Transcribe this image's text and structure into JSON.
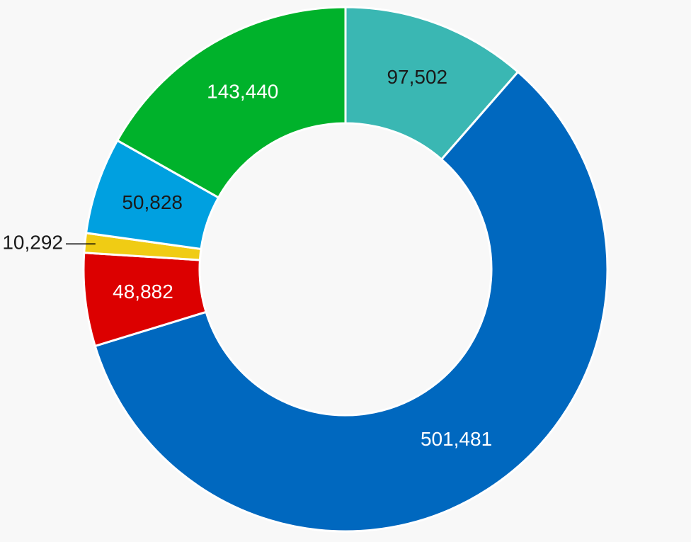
{
  "chart_data": {
    "type": "donut",
    "values": [
      97502,
      501481,
      48882,
      10292,
      50828,
      143440
    ],
    "value_labels": [
      "97,502",
      "501,481",
      "48,882",
      "10,292",
      "50,828",
      "143,440"
    ],
    "colors": [
      "#3ab7b3",
      "#0068bf",
      "#dc0000",
      "#f0cc14",
      "#00a0e0",
      "#00b22b"
    ]
  }
}
